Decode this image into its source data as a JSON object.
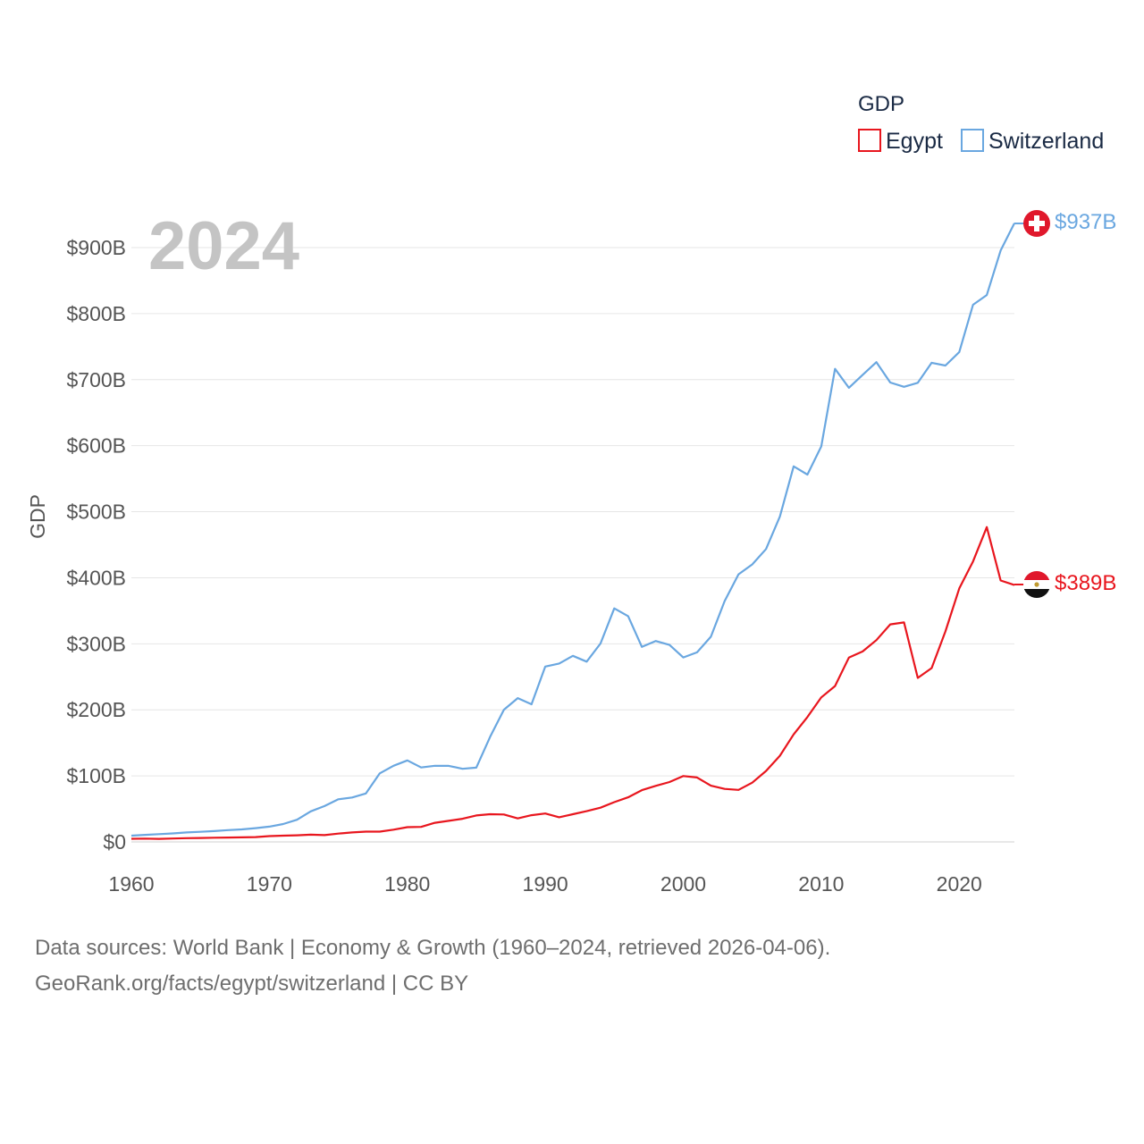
{
  "chart_data": {
    "type": "line",
    "year_label": "2024",
    "ylabel": "GDP",
    "legend_title": "GDP",
    "x_ticks": [
      1960,
      1970,
      1980,
      1990,
      2000,
      2010,
      2020
    ],
    "y_ticks": [
      0,
      100,
      200,
      300,
      400,
      500,
      600,
      700,
      800,
      900
    ],
    "y_tick_labels": [
      "$0",
      "$100B",
      "$200B",
      "$300B",
      "$400B",
      "$500B",
      "$600B",
      "$700B",
      "$800B",
      "$900B"
    ],
    "xlim": [
      1960,
      2024
    ],
    "ylim": [
      0,
      937
    ],
    "units": "billions USD",
    "x": [
      1960,
      1961,
      1962,
      1963,
      1964,
      1965,
      1966,
      1967,
      1968,
      1969,
      1970,
      1971,
      1972,
      1973,
      1974,
      1975,
      1976,
      1977,
      1978,
      1979,
      1980,
      1981,
      1982,
      1983,
      1984,
      1985,
      1986,
      1987,
      1988,
      1989,
      1990,
      1991,
      1992,
      1993,
      1994,
      1995,
      1996,
      1997,
      1998,
      1999,
      2000,
      2001,
      2002,
      2003,
      2004,
      2005,
      2006,
      2007,
      2008,
      2009,
      2010,
      2011,
      2012,
      2013,
      2014,
      2015,
      2016,
      2017,
      2018,
      2019,
      2020,
      2021,
      2022,
      2023,
      2024
    ],
    "series": [
      {
        "name": "Egypt",
        "color": "#e8161e",
        "end_label": "$389B",
        "flag": "egypt-flag-icon",
        "values": [
          4.8,
          5.0,
          4.6,
          5.1,
          5.7,
          6.0,
          6.3,
          6.6,
          6.9,
          7.3,
          8.8,
          9.5,
          10.0,
          10.9,
          10.3,
          12.6,
          14.3,
          15.5,
          15.6,
          18.5,
          22.3,
          22.8,
          28.9,
          32.0,
          35.0,
          40.0,
          42.0,
          41.5,
          35.6,
          40.5,
          43.1,
          37.4,
          42.0,
          46.6,
          51.9,
          60.2,
          67.6,
          78.4,
          84.8,
          90.7,
          99.8,
          97.6,
          85.1,
          80.3,
          78.8,
          89.7,
          107.5,
          130.5,
          162.8,
          189.1,
          218.9,
          236.0,
          279.1,
          288.4,
          305.6,
          329.4,
          332.4,
          248.4,
          263.2,
          318.7,
          383.8,
          424.7,
          476.7,
          395.9,
          389.0
        ]
      },
      {
        "name": "Switzerland",
        "color": "#6aa7e0",
        "end_label": "$937B",
        "flag": "switzerland-flag-icon",
        "values": [
          9.5,
          10.7,
          11.8,
          12.9,
          14.3,
          15.3,
          16.4,
          17.8,
          19.0,
          20.9,
          23.2,
          27.0,
          33.6,
          46.3,
          54.3,
          64.6,
          67.3,
          73.3,
          103.8,
          115.3,
          123.4,
          112.8,
          115.3,
          115.2,
          110.7,
          112.4,
          159.2,
          200.1,
          217.8,
          208.4,
          265.6,
          270.1,
          281.8,
          273.0,
          300.5,
          353.7,
          341.9,
          295.3,
          304.3,
          298.3,
          279.4,
          287.1,
          310.8,
          364.8,
          405.2,
          420.2,
          443.5,
          492.7,
          568.7,
          556.2,
          598.9,
          716.3,
          687.6,
          707.3,
          726.5,
          695.6,
          689.1,
          695.2,
          725.6,
          721.4,
          741.8,
          813.4,
          828.2,
          895.6,
          937.0
        ]
      }
    ],
    "source_text": "Data sources: World Bank | Economy & Growth (1960–2024, retrieved 2026-04-06).",
    "credit_text": "GeoRank.org/facts/egypt/switzerland | CC BY"
  }
}
